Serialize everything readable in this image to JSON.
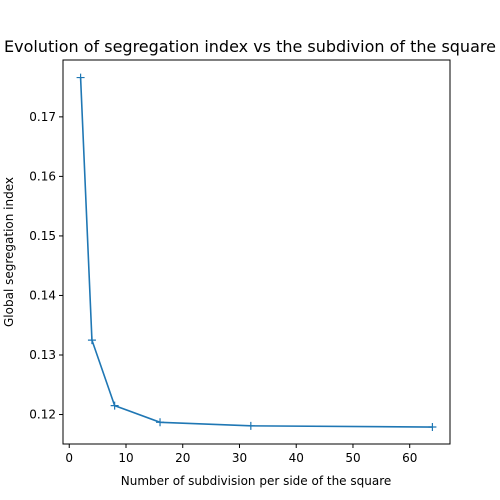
{
  "chart_data": {
    "type": "line",
    "title": "Evolution of segregation index vs the subdivion of the square",
    "xlabel": "Number of subdivision per side of the square",
    "ylabel": "Global segregation index",
    "xlim": [
      -1.1,
      67.1
    ],
    "ylim": [
      0.11505,
      0.17955
    ],
    "xticks": [
      0,
      10,
      20,
      30,
      40,
      50,
      60
    ],
    "xtick_labels": [
      "0",
      "10",
      "20",
      "30",
      "40",
      "50",
      "60"
    ],
    "yticks": [
      0.12,
      0.13,
      0.14,
      0.15,
      0.16,
      0.17
    ],
    "ytick_labels": [
      "0.12",
      "0.13",
      "0.14",
      "0.15",
      "0.16",
      "0.17"
    ],
    "grid": false,
    "marker": "+",
    "series": [
      {
        "x": [
          2,
          4,
          8,
          16,
          32,
          64
        ],
        "y": [
          0.1766,
          0.1325,
          0.1215,
          0.1187,
          0.1181,
          0.1179
        ],
        "color": "#1f77b4"
      }
    ]
  }
}
